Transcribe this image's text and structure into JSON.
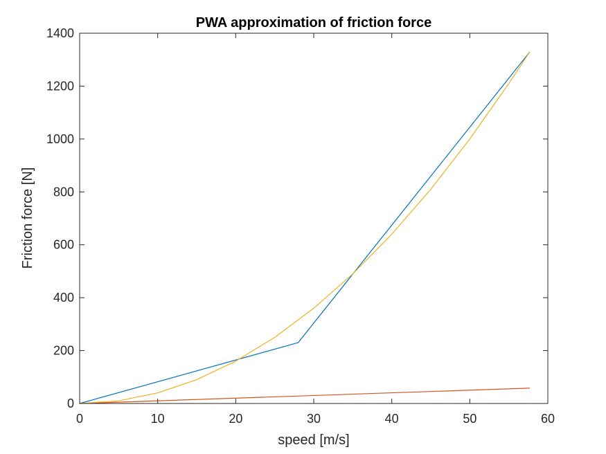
{
  "chart_data": {
    "type": "line",
    "title": "PWA approximation of friction force",
    "xlabel": "speed [m/s]",
    "ylabel": "Friction force [N]",
    "xlim": [
      0,
      60
    ],
    "ylim": [
      0,
      1400
    ],
    "xticks": [
      "0",
      "10",
      "20",
      "30",
      "40",
      "50",
      "60"
    ],
    "yticks": [
      "0",
      "200",
      "400",
      "600",
      "800",
      "1000",
      "1200",
      "1400"
    ],
    "grid": false,
    "legend": "none",
    "series": [
      {
        "color": "#0072BD",
        "points": [
          [
            0,
            0
          ],
          [
            28,
            230
          ],
          [
            57.7,
            1330
          ]
        ]
      },
      {
        "color": "#D95319",
        "points": [
          [
            0,
            0
          ],
          [
            57.7,
            58
          ]
        ]
      },
      {
        "color": "#EDB120",
        "points": [
          [
            0,
            0
          ],
          [
            5,
            10
          ],
          [
            10,
            40
          ],
          [
            15,
            90
          ],
          [
            20,
            160
          ],
          [
            25,
            250
          ],
          [
            30,
            360
          ],
          [
            35,
            490
          ],
          [
            40,
            640
          ],
          [
            45,
            810
          ],
          [
            50,
            1000
          ],
          [
            55,
            1210
          ],
          [
            57.7,
            1330
          ]
        ]
      }
    ]
  }
}
